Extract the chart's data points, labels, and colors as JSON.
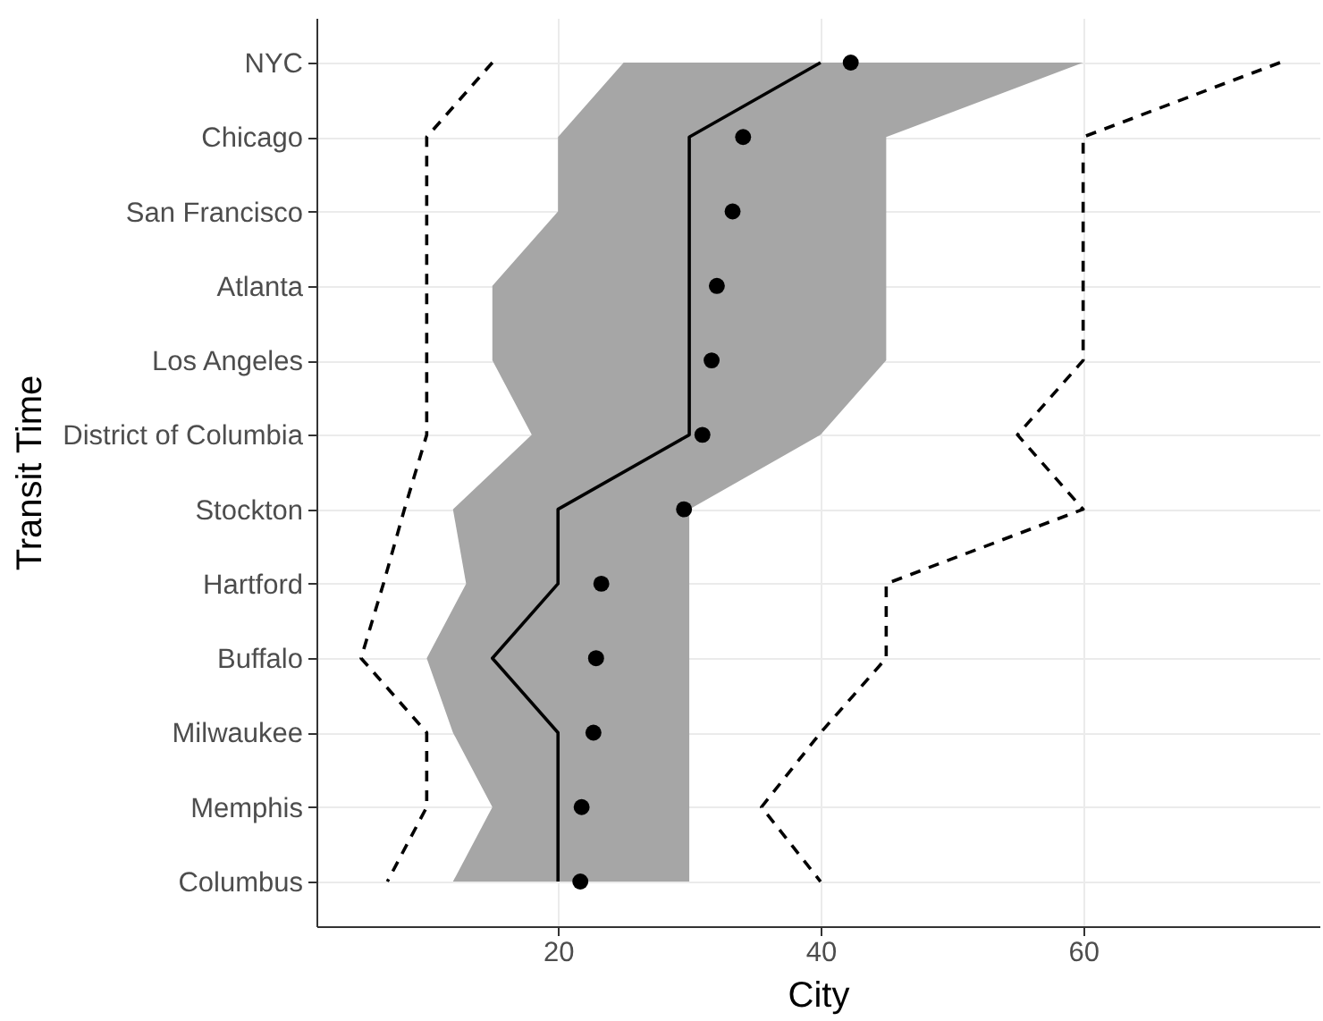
{
  "chart_data": {
    "type": "line",
    "orientation": "horizontal",
    "xlabel": "City",
    "ylabel": "Transit Time",
    "categories": [
      "NYC",
      "Chicago",
      "San Francisco",
      "Atlanta",
      "Los Angeles",
      "District of Columbia",
      "Stockton",
      "Hartford",
      "Buffalo",
      "Milwaukee",
      "Memphis",
      "Columbus"
    ],
    "xlim": [
      1.6,
      78
    ],
    "xticks": [
      20,
      40,
      60
    ],
    "grid": true,
    "series": [
      {
        "color": "#000000",
        "line_style": "solid",
        "values": [
          40,
          30,
          30,
          30,
          30,
          30,
          20,
          20,
          15,
          20,
          20,
          20
        ],
        "lower": [
          25,
          20,
          20,
          15,
          15,
          18,
          12,
          13,
          10,
          12,
          15,
          12
        ],
        "upper": [
          60,
          45,
          45,
          45,
          45,
          40,
          30,
          30,
          30,
          30,
          30,
          30
        ]
      },
      {
        "color": "#000000",
        "line_style": "dashed",
        "values": [
          15,
          10,
          10,
          10,
          10,
          10,
          8.3,
          6.7,
          5,
          10,
          10,
          7
        ]
      },
      {
        "color": "#000000",
        "line_style": "dashed",
        "values": [
          75,
          60,
          60,
          60,
          60,
          55,
          60,
          45,
          45,
          40,
          35.5,
          40
        ]
      },
      {
        "type": "scatter",
        "color": "#000000",
        "marker": "circle",
        "values": [
          42.3,
          34.1,
          33.3,
          32.1,
          31.7,
          31,
          29.6,
          23.3,
          22.9,
          22.7,
          21.8,
          21.7
        ]
      }
    ]
  }
}
